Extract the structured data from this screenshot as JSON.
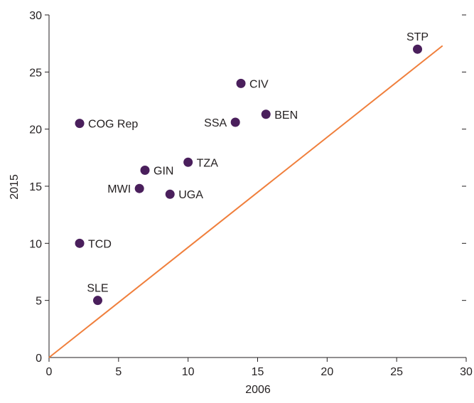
{
  "chart_data": {
    "type": "scatter",
    "xlabel": "2006",
    "ylabel": "2015",
    "xlim": [
      0,
      30
    ],
    "ylim": [
      0,
      30
    ],
    "xticks": [
      "0",
      "5",
      "10",
      "15",
      "20",
      "25",
      "30"
    ],
    "yticks": [
      "0",
      "5",
      "10",
      "15",
      "20",
      "25",
      "30"
    ],
    "grid": false,
    "point_color": "#4a1f5c",
    "line_color": "#f07f3c",
    "reference_line": {
      "x": [
        0,
        28.3
      ],
      "y": [
        0,
        27.3
      ]
    },
    "points": [
      {
        "label": "STP",
        "x": 26.5,
        "y": 27.0,
        "label_pos": "above"
      },
      {
        "label": "CIV",
        "x": 13.8,
        "y": 24.0,
        "label_pos": "right"
      },
      {
        "label": "BEN",
        "x": 15.6,
        "y": 21.3,
        "label_pos": "right"
      },
      {
        "label": "SSA",
        "x": 13.4,
        "y": 20.6,
        "label_pos": "left"
      },
      {
        "label": "COG Rep",
        "x": 2.2,
        "y": 20.5,
        "label_pos": "right"
      },
      {
        "label": "TZA",
        "x": 10.0,
        "y": 17.1,
        "label_pos": "right"
      },
      {
        "label": "GIN",
        "x": 6.9,
        "y": 16.4,
        "label_pos": "right"
      },
      {
        "label": "MWI",
        "x": 6.5,
        "y": 14.8,
        "label_pos": "left"
      },
      {
        "label": "UGA",
        "x": 8.7,
        "y": 14.3,
        "label_pos": "right"
      },
      {
        "label": "TCD",
        "x": 2.2,
        "y": 10.0,
        "label_pos": "right"
      },
      {
        "label": "SLE",
        "x": 3.5,
        "y": 5.0,
        "label_pos": "above"
      }
    ]
  }
}
